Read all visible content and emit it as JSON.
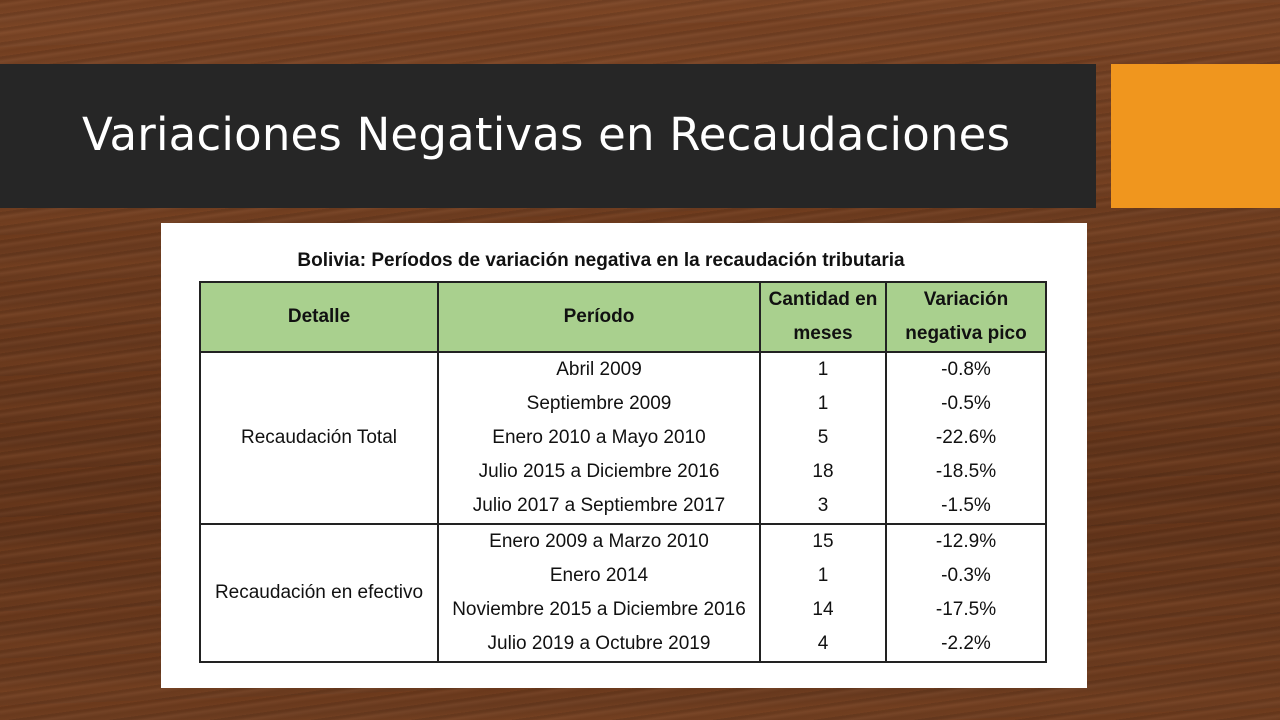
{
  "slide": {
    "title": "Variaciones Negativas en Recaudaciones",
    "colors": {
      "title_bar": "#262626",
      "accent": "#f0961e",
      "header_fill": "#a9d08e"
    }
  },
  "table": {
    "caption": "Bolivia: Períodos de variación negativa en la recaudación tributaria",
    "headers": {
      "detalle": "Detalle",
      "periodo": "Período",
      "cantidad_line1": "Cantidad en",
      "cantidad_line2": "meses",
      "variacion_line1": "Variación",
      "variacion_line2": "negativa pico"
    },
    "groups": [
      {
        "label": "Recaudación Total",
        "rows": [
          {
            "periodo": "Abril 2009",
            "meses": "1",
            "variacion": "-0.8%"
          },
          {
            "periodo": "Septiembre 2009",
            "meses": "1",
            "variacion": "-0.5%"
          },
          {
            "periodo": "Enero 2010 a Mayo 2010",
            "meses": "5",
            "variacion": "-22.6%"
          },
          {
            "periodo": "Julio 2015 a Diciembre 2016",
            "meses": "18",
            "variacion": "-18.5%"
          },
          {
            "periodo": "Julio 2017 a Septiembre 2017",
            "meses": "3",
            "variacion": "-1.5%"
          }
        ]
      },
      {
        "label": "Recaudación en efectivo",
        "rows": [
          {
            "periodo": "Enero 2009 a Marzo 2010",
            "meses": "15",
            "variacion": "-12.9%"
          },
          {
            "periodo": "Enero 2014",
            "meses": "1",
            "variacion": "-0.3%"
          },
          {
            "periodo": "Noviembre 2015 a Diciembre 2016",
            "meses": "14",
            "variacion": "-17.5%"
          },
          {
            "periodo": "Julio 2019 a Octubre 2019",
            "meses": "4",
            "variacion": "-2.2%"
          }
        ]
      }
    ]
  }
}
